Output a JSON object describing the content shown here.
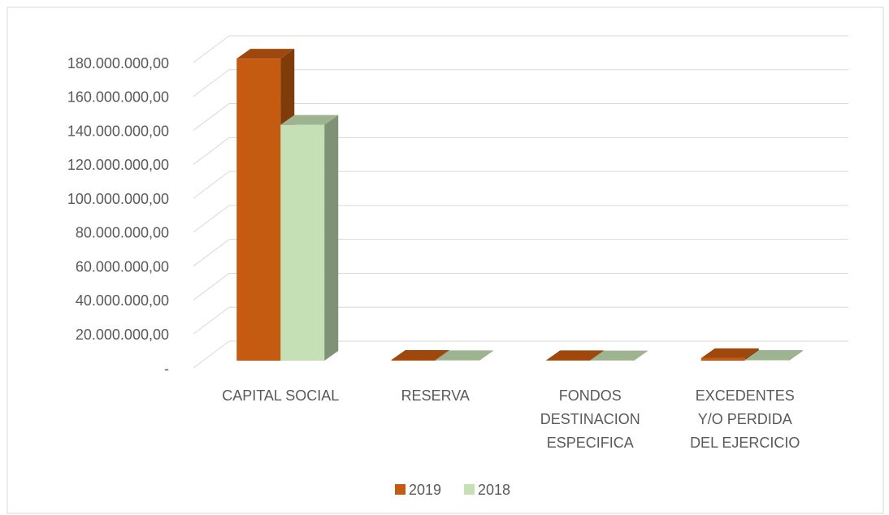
{
  "chart_data": {
    "type": "bar3d",
    "categories": [
      "CAPITAL SOCIAL",
      "RESERVA",
      "FONDOS DESTINACION ESPECIFICA",
      "EXCEDENTES Y/O PERDIDA DEL EJERCICIO"
    ],
    "series": [
      {
        "name": "2019",
        "color": "#c55a11",
        "values": [
          178000000,
          500000,
          300000,
          1500000
        ]
      },
      {
        "name": "2018",
        "color": "#c5e0b4",
        "values": [
          139000000,
          300000,
          200000,
          500000
        ]
      }
    ],
    "ylim": [
      0,
      180000000
    ],
    "yticks": [
      {
        "value": 0,
        "label": "-"
      },
      {
        "value": 20000000,
        "label": "20.000.000,00"
      },
      {
        "value": 40000000,
        "label": "40.000.000,00"
      },
      {
        "value": 60000000,
        "label": "60.000.000,00"
      },
      {
        "value": 80000000,
        "label": "80.000.000,00"
      },
      {
        "value": 100000000,
        "label": "100.000.000,00"
      },
      {
        "value": 120000000,
        "label": "120.000.000,00"
      },
      {
        "value": 140000000,
        "label": "140.000.000,00"
      },
      {
        "value": 160000000,
        "label": "160.000.000,00"
      },
      {
        "value": 180000000,
        "label": "180.000.000,00"
      }
    ],
    "grid": true,
    "legend": "bottom"
  }
}
